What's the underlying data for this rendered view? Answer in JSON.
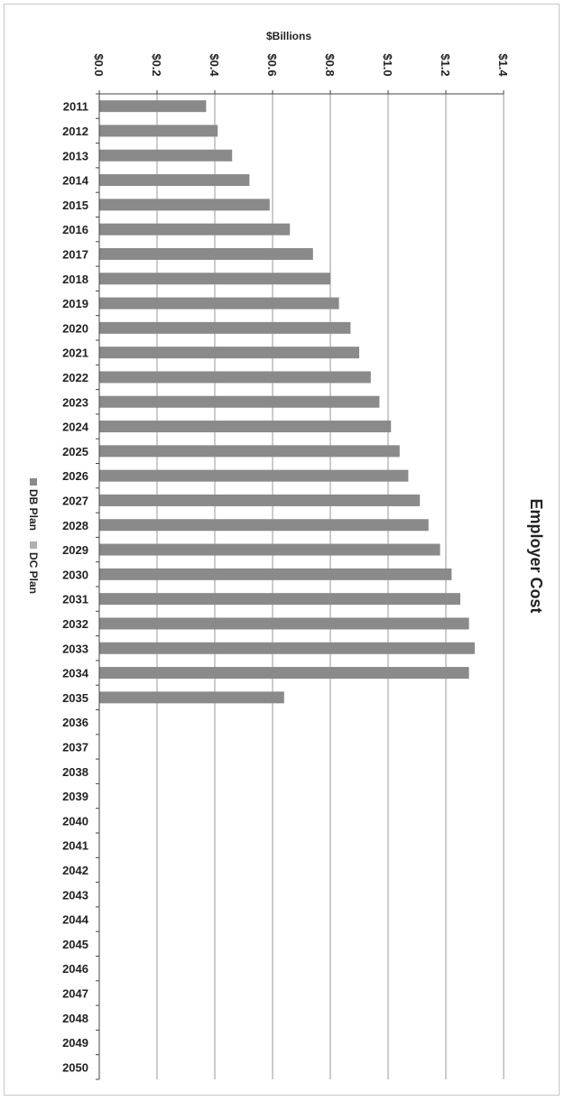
{
  "chart_data": {
    "type": "bar",
    "orientation": "horizontal",
    "title": "Employer Cost",
    "xlabel": "$Billions",
    "ylabel": "",
    "xlim": [
      0,
      1.4
    ],
    "x_ticks": [
      "$0.0",
      "$0.2",
      "$0.4",
      "$0.6",
      "$0.8",
      "$1.0",
      "$1.2",
      "$1.4"
    ],
    "x_tick_values": [
      0,
      0.2,
      0.4,
      0.6,
      0.8,
      1.0,
      1.2,
      1.4
    ],
    "grid": true,
    "legend": "left",
    "categories": [
      "2011",
      "2012",
      "2013",
      "2014",
      "2015",
      "2016",
      "2017",
      "2018",
      "2019",
      "2020",
      "2021",
      "2022",
      "2023",
      "2024",
      "2025",
      "2026",
      "2027",
      "2028",
      "2029",
      "2030",
      "2031",
      "2032",
      "2033",
      "2034",
      "2035",
      "2036",
      "2037",
      "2038",
      "2039",
      "2040",
      "2041",
      "2042",
      "2043",
      "2044",
      "2045",
      "2046",
      "2047",
      "2048",
      "2049",
      "2050"
    ],
    "series": [
      {
        "name": "DB Plan",
        "color": "#8a8a8a",
        "values": [
          0.37,
          0.41,
          0.46,
          0.52,
          0.59,
          0.66,
          0.74,
          0.8,
          0.83,
          0.87,
          0.9,
          0.94,
          0.97,
          1.01,
          1.04,
          1.07,
          1.11,
          1.14,
          1.18,
          1.22,
          1.25,
          1.28,
          1.3,
          1.28,
          0.64,
          0,
          0,
          0,
          0,
          0,
          0,
          0,
          0,
          0,
          0,
          0,
          0,
          0,
          0,
          0
        ]
      },
      {
        "name": "DC Plan",
        "color": "#b0b0b0",
        "values": [
          0,
          0,
          0,
          0,
          0,
          0,
          0,
          0,
          0,
          0,
          0,
          0,
          0,
          0,
          0,
          0,
          0,
          0,
          0,
          0,
          0,
          0,
          0,
          0,
          0,
          0,
          0,
          0,
          0,
          0,
          0,
          0,
          0,
          0,
          0,
          0,
          0,
          0,
          0,
          0
        ]
      }
    ]
  }
}
